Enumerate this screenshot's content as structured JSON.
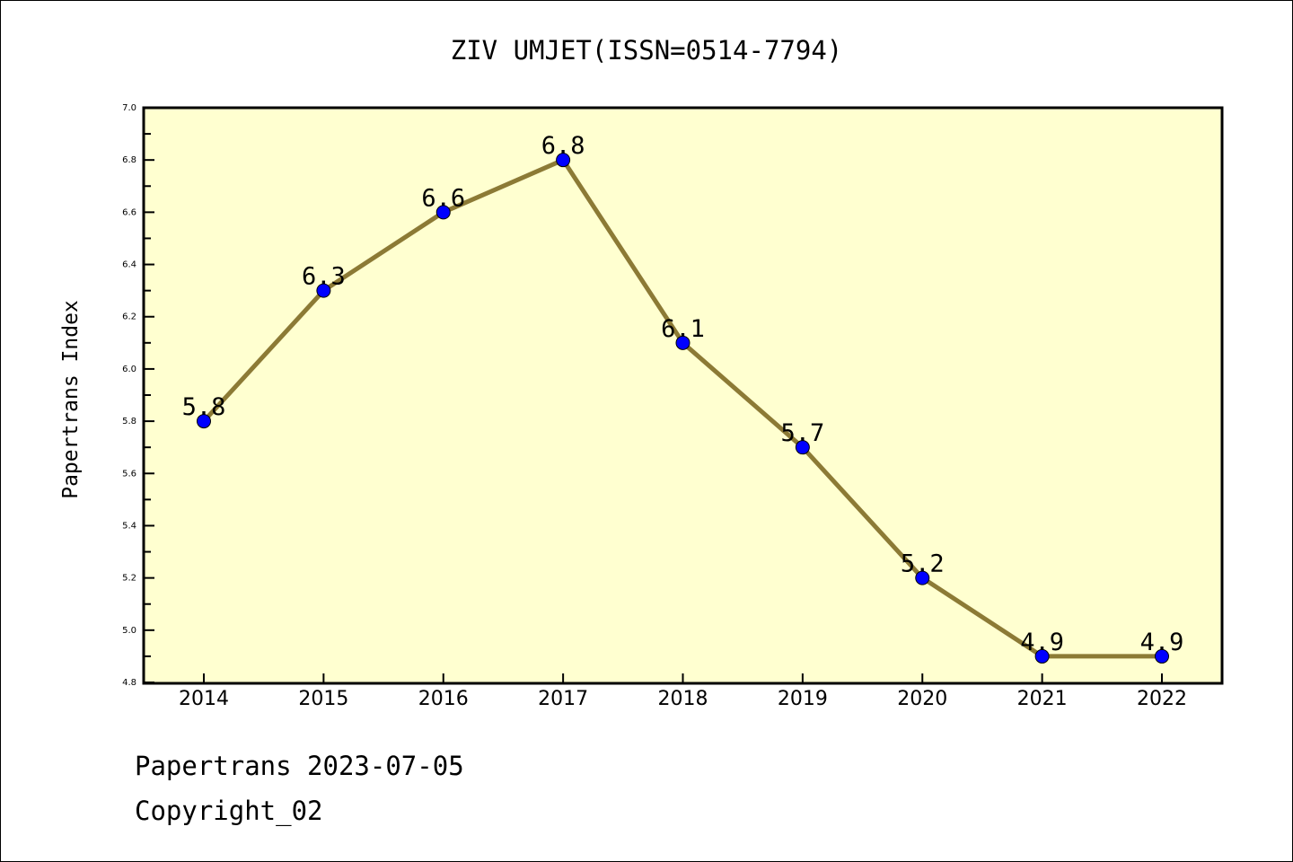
{
  "chart_data": {
    "type": "line",
    "title": "ZIV UMJET(ISSN=0514-7794)",
    "xlabel": "",
    "ylabel": "Papertrans Index",
    "x": [
      "2014",
      "2015",
      "2016",
      "2017",
      "2018",
      "2019",
      "2020",
      "2021",
      "2022"
    ],
    "series": [
      {
        "name": "Papertrans Index",
        "values": [
          5.8,
          6.3,
          6.6,
          6.8,
          6.1,
          5.7,
          5.2,
          4.9,
          4.9
        ]
      }
    ],
    "data_labels": [
      "5.8",
      "6.3",
      "6.6",
      "6.8",
      "6.1",
      "5.7",
      "5.2",
      "4.9",
      "4.9"
    ],
    "ylim": [
      4.8,
      7.0
    ],
    "yticks": [
      "4.8",
      "5.0",
      "5.2",
      "5.4",
      "5.6",
      "5.8",
      "6.0",
      "6.2",
      "6.4",
      "6.6",
      "6.8",
      "7.0"
    ],
    "grid": false,
    "colors": {
      "plot_bg": "#ffffd0",
      "line": "#8c7a35",
      "marker": "#0000ff"
    }
  },
  "footer": {
    "line1": "Papertrans 2023-07-05",
    "line2": "Copyright_02"
  }
}
